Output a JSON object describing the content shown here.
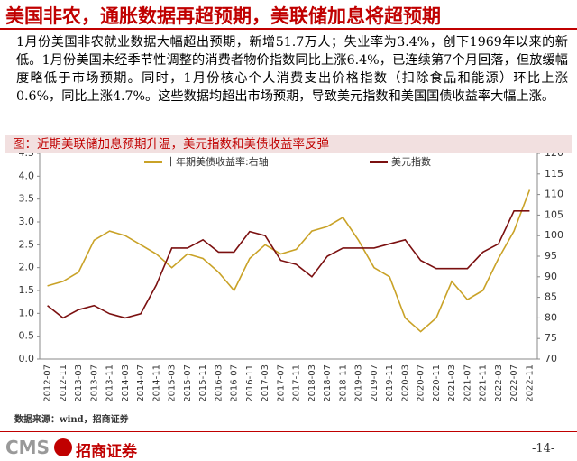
{
  "header": {
    "title": "美国非农，通胀数据再超预期，美联储加息将超预期"
  },
  "paragraph": "1月份美国非农就业数据大幅超出预期，新增51.7万人；失业率为3.4%，创下1969年以来的新低。1月份美国未经季节性调整的消费者物价指数同比上涨6.4%，已连续第7个月回落，但放缓幅度略低于市场预期。同时，1月份核心个人消费支出价格指数（扣除食品和能源）环比上涨0.6%，同比上涨4.7%。这些数据均超出市场预期，导致美元指数和美国国债收益率大幅上涨。",
  "chart_title": "图：近期美联储加息预期升温，美元指数和美债收益率反弹",
  "chart_data": {
    "type": "line",
    "categories": [
      "2012-07",
      "2012-11",
      "2013-03",
      "2013-07",
      "2013-11",
      "2014-03",
      "2014-07",
      "2014-11",
      "2015-03",
      "2015-07",
      "2015-11",
      "2016-03",
      "2016-07",
      "2016-11",
      "2017-03",
      "2017-07",
      "2017-11",
      "2018-03",
      "2018-07",
      "2018-11",
      "2019-03",
      "2019-07",
      "2019-11",
      "2020-03",
      "2020-07",
      "2020-11",
      "2021-03",
      "2021-07",
      "2021-11",
      "2022-03",
      "2022-07",
      "2022-11"
    ],
    "series": [
      {
        "name": "十年期美债收益率:右轴",
        "color": "#c9a227",
        "axis": "y",
        "values": [
          1.6,
          1.7,
          1.9,
          2.6,
          2.8,
          2.7,
          2.5,
          2.3,
          2.0,
          2.3,
          2.2,
          1.9,
          1.5,
          2.2,
          2.5,
          2.3,
          2.4,
          2.8,
          2.9,
          3.1,
          2.6,
          2.0,
          1.8,
          0.9,
          0.6,
          0.9,
          1.7,
          1.3,
          1.5,
          2.2,
          2.8,
          3.7
        ]
      },
      {
        "name": "美元指数",
        "color": "#7b1010",
        "axis": "y2",
        "values": [
          83,
          80,
          82,
          83,
          81,
          80,
          81,
          88,
          97,
          97,
          99,
          96,
          96,
          101,
          100,
          94,
          93,
          90,
          95,
          97,
          97,
          97,
          98,
          99,
          94,
          92,
          92,
          92,
          96,
          98,
          106,
          106
        ]
      }
    ],
    "ylim": [
      0,
      4.5
    ],
    "yticks": [
      {
        "value": 0,
        "label": "0.0"
      },
      {
        "value": 0.5,
        "label": "0.5"
      },
      {
        "value": 1,
        "label": "1.0"
      },
      {
        "value": 1.5,
        "label": "1.5"
      },
      {
        "value": 2,
        "label": "2.0"
      },
      {
        "value": 2.5,
        "label": "2.5"
      },
      {
        "value": 3,
        "label": "3.0"
      },
      {
        "value": 3.5,
        "label": "3.5"
      },
      {
        "value": 4,
        "label": "4.0"
      },
      {
        "value": 4.5,
        "label": "4.5"
      }
    ],
    "y2lim": [
      70,
      120
    ],
    "y2ticks": [
      70,
      75,
      80,
      85,
      90,
      95,
      100,
      105,
      110,
      115,
      120
    ]
  },
  "source": "数据来源：wind，招商证券",
  "footer": {
    "logo": "CMS",
    "company": "招商证券",
    "page": "-14-"
  }
}
